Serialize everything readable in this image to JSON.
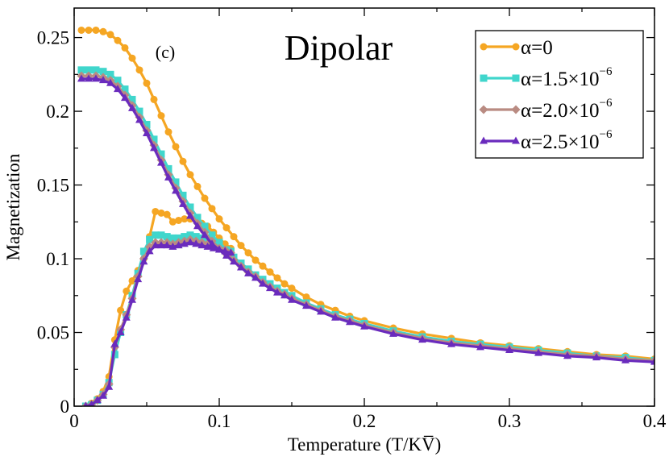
{
  "chart_data": {
    "type": "line",
    "title": "Dipolar",
    "panel_label": "(c)",
    "xlabel": "Temperature (T/KV̅)",
    "ylabel": "Magnetization",
    "xlim": [
      0,
      0.4
    ],
    "ylim": [
      0,
      0.27
    ],
    "x_ticks": [
      0,
      0.1,
      0.2,
      0.3,
      0.4
    ],
    "x_tick_labels": [
      "0",
      "0.1",
      "0.2",
      "0.3",
      "0.4"
    ],
    "y_ticks": [
      0,
      0.05,
      0.1,
      0.15,
      0.2,
      0.25
    ],
    "y_tick_labels": [
      "0",
      "0.05",
      "0.1",
      "0.15",
      "0.2",
      "0.25"
    ],
    "grid": false,
    "legend_position": "top-right",
    "series": [
      {
        "name": "α=0",
        "legend_main": "α=0",
        "legend_sup": "",
        "color": "#f5a623",
        "marker": "circle",
        "upper": {
          "x": [
            0.005,
            0.01,
            0.015,
            0.02,
            0.025,
            0.03,
            0.035,
            0.04,
            0.045,
            0.05,
            0.055,
            0.06,
            0.065,
            0.07,
            0.075,
            0.08,
            0.085,
            0.09,
            0.095,
            0.1,
            0.105,
            0.11,
            0.115,
            0.12,
            0.125,
            0.13,
            0.135,
            0.14,
            0.145,
            0.15,
            0.16,
            0.17,
            0.18,
            0.19,
            0.2,
            0.22,
            0.24,
            0.26,
            0.28,
            0.3,
            0.32,
            0.34,
            0.36,
            0.38,
            0.4
          ],
          "y": [
            0.255,
            0.255,
            0.255,
            0.254,
            0.252,
            0.248,
            0.243,
            0.236,
            0.228,
            0.219,
            0.208,
            0.197,
            0.186,
            0.176,
            0.166,
            0.157,
            0.149,
            0.141,
            0.134,
            0.127,
            0.121,
            0.115,
            0.109,
            0.104,
            0.099,
            0.095,
            0.091,
            0.087,
            0.083,
            0.08,
            0.074,
            0.069,
            0.065,
            0.061,
            0.058,
            0.053,
            0.049,
            0.046,
            0.043,
            0.041,
            0.039,
            0.037,
            0.035,
            0.034,
            0.032
          ]
        },
        "lower": {
          "x": [
            0.008,
            0.012,
            0.016,
            0.02,
            0.024,
            0.028,
            0.032,
            0.036,
            0.04,
            0.044,
            0.048,
            0.052,
            0.056,
            0.06,
            0.064,
            0.068,
            0.072,
            0.076,
            0.08,
            0.084,
            0.088,
            0.092,
            0.096,
            0.1,
            0.104,
            0.108
          ],
          "y": [
            0.0,
            0.002,
            0.005,
            0.01,
            0.02,
            0.045,
            0.065,
            0.078,
            0.085,
            0.092,
            0.1,
            0.115,
            0.132,
            0.131,
            0.13,
            0.125,
            0.126,
            0.127,
            0.127,
            0.126,
            0.124,
            0.122,
            0.118,
            0.114,
            0.11,
            0.107
          ]
        }
      },
      {
        "name": "α=1.5×10^-6",
        "legend_main": "α=1.5×10",
        "legend_sup": "−6",
        "color": "#40d6cc",
        "marker": "square",
        "upper": {
          "x": [
            0.005,
            0.01,
            0.015,
            0.02,
            0.025,
            0.03,
            0.035,
            0.04,
            0.045,
            0.05,
            0.055,
            0.06,
            0.065,
            0.07,
            0.075,
            0.08,
            0.085,
            0.09,
            0.095,
            0.1,
            0.105,
            0.11,
            0.115,
            0.12,
            0.125,
            0.13,
            0.135,
            0.14,
            0.145,
            0.15,
            0.16,
            0.17,
            0.18,
            0.19,
            0.2,
            0.22,
            0.24,
            0.26,
            0.28,
            0.3,
            0.32,
            0.34,
            0.36,
            0.38,
            0.4
          ],
          "y": [
            0.228,
            0.228,
            0.228,
            0.227,
            0.225,
            0.221,
            0.215,
            0.208,
            0.2,
            0.191,
            0.181,
            0.171,
            0.161,
            0.152,
            0.143,
            0.135,
            0.128,
            0.122,
            0.116,
            0.111,
            0.106,
            0.101,
            0.097,
            0.093,
            0.089,
            0.086,
            0.083,
            0.08,
            0.077,
            0.075,
            0.07,
            0.066,
            0.062,
            0.059,
            0.056,
            0.051,
            0.047,
            0.044,
            0.042,
            0.04,
            0.038,
            0.036,
            0.034,
            0.033,
            0.031
          ]
        },
        "lower": {
          "x": [
            0.008,
            0.012,
            0.016,
            0.02,
            0.024,
            0.028,
            0.032,
            0.036,
            0.04,
            0.044,
            0.048,
            0.052,
            0.056,
            0.06,
            0.064,
            0.068,
            0.072,
            0.076,
            0.08,
            0.084,
            0.088,
            0.092,
            0.096,
            0.1,
            0.104,
            0.108
          ],
          "y": [
            0.0,
            0.001,
            0.004,
            0.008,
            0.016,
            0.035,
            0.05,
            0.062,
            0.075,
            0.09,
            0.105,
            0.113,
            0.116,
            0.116,
            0.115,
            0.114,
            0.114,
            0.115,
            0.116,
            0.115,
            0.114,
            0.112,
            0.11,
            0.108,
            0.106,
            0.105
          ]
        }
      },
      {
        "name": "α=2.0×10^-6",
        "legend_main": "α=2.0×10",
        "legend_sup": "−6",
        "color": "#b98b82",
        "marker": "diamond",
        "upper": {
          "x": [
            0.005,
            0.01,
            0.015,
            0.02,
            0.025,
            0.03,
            0.035,
            0.04,
            0.045,
            0.05,
            0.055,
            0.06,
            0.065,
            0.07,
            0.075,
            0.08,
            0.085,
            0.09,
            0.095,
            0.1,
            0.105,
            0.11,
            0.115,
            0.12,
            0.125,
            0.13,
            0.135,
            0.14,
            0.145,
            0.15,
            0.16,
            0.17,
            0.18,
            0.19,
            0.2,
            0.22,
            0.24,
            0.26,
            0.28,
            0.3,
            0.32,
            0.34,
            0.36,
            0.38,
            0.4
          ],
          "y": [
            0.224,
            0.224,
            0.224,
            0.223,
            0.221,
            0.217,
            0.211,
            0.204,
            0.196,
            0.187,
            0.177,
            0.167,
            0.157,
            0.148,
            0.139,
            0.131,
            0.124,
            0.118,
            0.112,
            0.107,
            0.103,
            0.099,
            0.095,
            0.091,
            0.088,
            0.084,
            0.081,
            0.078,
            0.076,
            0.073,
            0.069,
            0.065,
            0.061,
            0.058,
            0.055,
            0.05,
            0.046,
            0.043,
            0.041,
            0.039,
            0.037,
            0.035,
            0.034,
            0.032,
            0.031
          ]
        },
        "lower": {
          "x": [
            0.008,
            0.012,
            0.016,
            0.02,
            0.024,
            0.028,
            0.032,
            0.036,
            0.04,
            0.044,
            0.048,
            0.052,
            0.056,
            0.06,
            0.064,
            0.068,
            0.072,
            0.076,
            0.08,
            0.084,
            0.088,
            0.092,
            0.096,
            0.1,
            0.104,
            0.108
          ],
          "y": [
            0.0,
            0.001,
            0.004,
            0.008,
            0.015,
            0.04,
            0.052,
            0.062,
            0.073,
            0.088,
            0.1,
            0.108,
            0.111,
            0.111,
            0.111,
            0.11,
            0.111,
            0.112,
            0.113,
            0.112,
            0.111,
            0.11,
            0.108,
            0.107,
            0.106,
            0.104
          ]
        }
      },
      {
        "name": "α=2.5×10^-6",
        "legend_main": "α=2.5×10",
        "legend_sup": "−6",
        "color": "#6a2bbd",
        "marker": "triangle",
        "upper": {
          "x": [
            0.005,
            0.01,
            0.015,
            0.02,
            0.025,
            0.03,
            0.035,
            0.04,
            0.045,
            0.05,
            0.055,
            0.06,
            0.065,
            0.07,
            0.075,
            0.08,
            0.085,
            0.09,
            0.095,
            0.1,
            0.105,
            0.11,
            0.115,
            0.12,
            0.125,
            0.13,
            0.135,
            0.14,
            0.145,
            0.15,
            0.16,
            0.17,
            0.18,
            0.19,
            0.2,
            0.22,
            0.24,
            0.26,
            0.28,
            0.3,
            0.32,
            0.34,
            0.36,
            0.38,
            0.4
          ],
          "y": [
            0.222,
            0.222,
            0.222,
            0.221,
            0.219,
            0.215,
            0.209,
            0.202,
            0.194,
            0.185,
            0.175,
            0.165,
            0.155,
            0.146,
            0.137,
            0.129,
            0.122,
            0.116,
            0.11,
            0.106,
            0.102,
            0.098,
            0.094,
            0.09,
            0.087,
            0.083,
            0.08,
            0.077,
            0.075,
            0.072,
            0.068,
            0.064,
            0.06,
            0.057,
            0.054,
            0.049,
            0.045,
            0.042,
            0.04,
            0.038,
            0.036,
            0.034,
            0.033,
            0.031,
            0.03
          ]
        },
        "lower": {
          "x": [
            0.008,
            0.012,
            0.016,
            0.02,
            0.024,
            0.028,
            0.032,
            0.036,
            0.04,
            0.044,
            0.048,
            0.052,
            0.056,
            0.06,
            0.064,
            0.068,
            0.072,
            0.076,
            0.08,
            0.084,
            0.088,
            0.092,
            0.096,
            0.1,
            0.104,
            0.108
          ],
          "y": [
            0.0,
            0.001,
            0.004,
            0.007,
            0.013,
            0.042,
            0.05,
            0.06,
            0.072,
            0.086,
            0.098,
            0.105,
            0.109,
            0.109,
            0.109,
            0.108,
            0.109,
            0.11,
            0.111,
            0.11,
            0.109,
            0.108,
            0.107,
            0.106,
            0.105,
            0.104
          ]
        }
      }
    ]
  }
}
